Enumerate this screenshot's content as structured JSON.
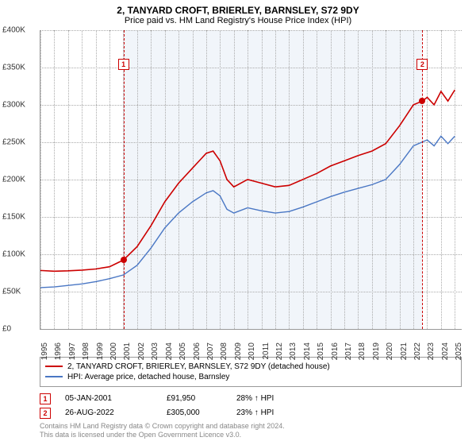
{
  "title": "2, TANYARD CROFT, BRIERLEY, BARNSLEY, S72 9DY",
  "subtitle": "Price paid vs. HM Land Registry's House Price Index (HPI)",
  "chart": {
    "type": "line",
    "x_years": [
      1995,
      1996,
      1997,
      1998,
      1999,
      2000,
      2001,
      2002,
      2003,
      2004,
      2005,
      2006,
      2007,
      2008,
      2009,
      2010,
      2011,
      2012,
      2013,
      2014,
      2015,
      2016,
      2017,
      2018,
      2019,
      2020,
      2021,
      2022,
      2023,
      2024,
      2025
    ],
    "xlim": [
      1995,
      2025.5
    ],
    "ylim": [
      0,
      400000
    ],
    "ytick_step": 50000,
    "yticks": [
      "£0",
      "£50K",
      "£100K",
      "£150K",
      "£200K",
      "£250K",
      "£300K",
      "£350K",
      "£400K"
    ],
    "grid_color": "#aaaaaa",
    "background_color": "#ffffff",
    "shade_color": "#e8eef7",
    "shade_ranges": [
      [
        2001,
        2022.65
      ]
    ],
    "tick_fontsize": 10,
    "title_fontsize": 12,
    "series": [
      {
        "name": "2, TANYARD CROFT, BRIERLEY, BARNSLEY, S72 9DY (detached house)",
        "color": "#cc0000",
        "line_width": 1.6,
        "points": [
          [
            1995,
            78000
          ],
          [
            1996,
            77000
          ],
          [
            1997,
            77500
          ],
          [
            1998,
            78500
          ],
          [
            1999,
            80000
          ],
          [
            2000,
            83000
          ],
          [
            2001,
            91950
          ],
          [
            2002,
            110000
          ],
          [
            2003,
            138000
          ],
          [
            2004,
            170000
          ],
          [
            2005,
            195000
          ],
          [
            2006,
            215000
          ],
          [
            2007,
            235000
          ],
          [
            2007.5,
            238000
          ],
          [
            2008,
            225000
          ],
          [
            2008.5,
            200000
          ],
          [
            2009,
            190000
          ],
          [
            2010,
            200000
          ],
          [
            2011,
            195000
          ],
          [
            2012,
            190000
          ],
          [
            2013,
            192000
          ],
          [
            2014,
            200000
          ],
          [
            2015,
            208000
          ],
          [
            2016,
            218000
          ],
          [
            2017,
            225000
          ],
          [
            2018,
            232000
          ],
          [
            2019,
            238000
          ],
          [
            2020,
            248000
          ],
          [
            2021,
            272000
          ],
          [
            2022,
            300000
          ],
          [
            2022.65,
            305000
          ],
          [
            2023,
            310000
          ],
          [
            2023.5,
            300000
          ],
          [
            2024,
            318000
          ],
          [
            2024.5,
            305000
          ],
          [
            2025,
            320000
          ]
        ]
      },
      {
        "name": "HPI: Average price, detached house, Barnsley",
        "color": "#4a77c4",
        "line_width": 1.4,
        "points": [
          [
            1995,
            55000
          ],
          [
            1996,
            56000
          ],
          [
            1997,
            58000
          ],
          [
            1998,
            60000
          ],
          [
            1999,
            63000
          ],
          [
            2000,
            67000
          ],
          [
            2001,
            72000
          ],
          [
            2002,
            85000
          ],
          [
            2003,
            108000
          ],
          [
            2004,
            135000
          ],
          [
            2005,
            155000
          ],
          [
            2006,
            170000
          ],
          [
            2007,
            182000
          ],
          [
            2007.5,
            185000
          ],
          [
            2008,
            178000
          ],
          [
            2008.5,
            160000
          ],
          [
            2009,
            155000
          ],
          [
            2010,
            162000
          ],
          [
            2011,
            158000
          ],
          [
            2012,
            155000
          ],
          [
            2013,
            157000
          ],
          [
            2014,
            163000
          ],
          [
            2015,
            170000
          ],
          [
            2016,
            177000
          ],
          [
            2017,
            183000
          ],
          [
            2018,
            188000
          ],
          [
            2019,
            193000
          ],
          [
            2020,
            200000
          ],
          [
            2021,
            220000
          ],
          [
            2022,
            245000
          ],
          [
            2023,
            253000
          ],
          [
            2023.5,
            245000
          ],
          [
            2024,
            258000
          ],
          [
            2024.5,
            248000
          ],
          [
            2025,
            258000
          ]
        ]
      }
    ],
    "markers": [
      {
        "n": "1",
        "x": 2001.01,
        "y": 91950,
        "box_top": 36,
        "dot_color": "#cc0000"
      },
      {
        "n": "2",
        "x": 2022.65,
        "y": 305000,
        "box_top": 36,
        "dot_color": "#cc0000"
      }
    ]
  },
  "legend": {
    "items": [
      {
        "color": "#cc0000",
        "label": "2, TANYARD CROFT, BRIERLEY, BARNSLEY, S72 9DY (detached house)"
      },
      {
        "color": "#4a77c4",
        "label": "HPI: Average price, detached house, Barnsley"
      }
    ]
  },
  "sales": [
    {
      "n": "1",
      "date": "05-JAN-2001",
      "price": "£91,950",
      "delta": "28% ↑ HPI"
    },
    {
      "n": "2",
      "date": "26-AUG-2022",
      "price": "£305,000",
      "delta": "23% ↑ HPI"
    }
  ],
  "footer": {
    "line1": "Contains HM Land Registry data © Crown copyright and database right 2024.",
    "line2": "This data is licensed under the Open Government Licence v3.0."
  }
}
